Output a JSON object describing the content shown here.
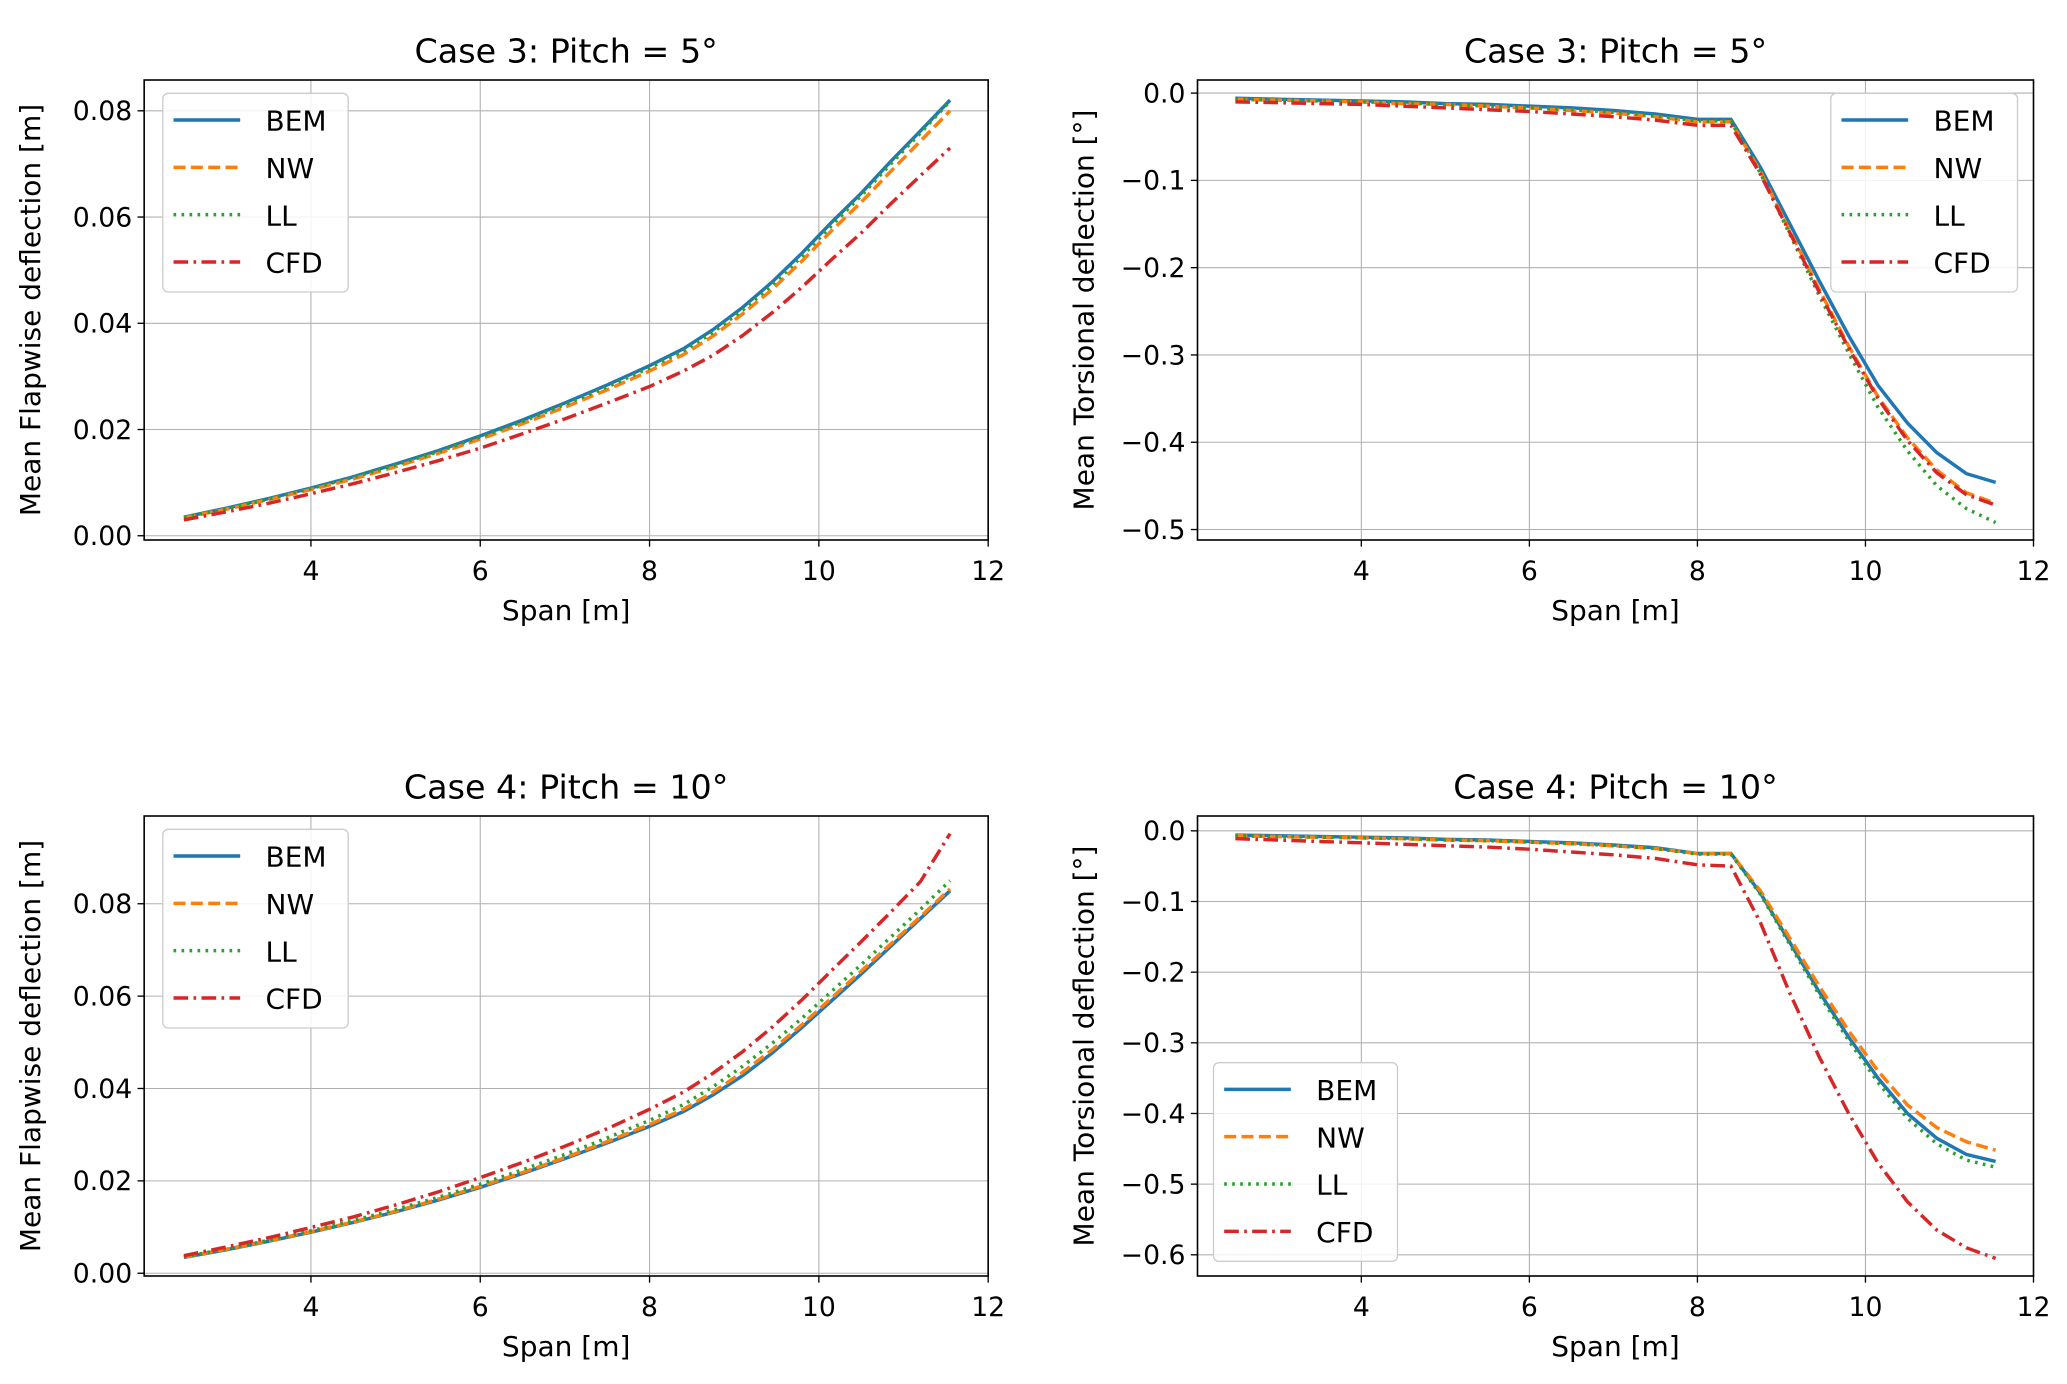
{
  "chart_data": [
    {
      "type": "line",
      "title": "Case 3: Pitch = 5°",
      "xlabel": "Span [m]",
      "ylabel": "Mean Flapwise deflection [m]",
      "xlim": [
        2.03,
        12
      ],
      "ylim": [
        -0.0008,
        0.0858
      ],
      "xticks": [
        {
          "v": 4,
          "label": "4"
        },
        {
          "v": 6,
          "label": "6"
        },
        {
          "v": 8,
          "label": "8"
        },
        {
          "v": 10,
          "label": "10"
        },
        {
          "v": 12,
          "label": "12"
        }
      ],
      "yticks": [
        {
          "v": 0,
          "label": "0.00"
        },
        {
          "v": 0.02,
          "label": "0.02"
        },
        {
          "v": 0.04,
          "label": "0.04"
        },
        {
          "v": 0.06,
          "label": "0.06"
        },
        {
          "v": 0.08,
          "label": "0.08"
        }
      ],
      "grid": true,
      "legend_position": "upper-left",
      "x": [
        2.5,
        3.0,
        3.5,
        4.0,
        4.5,
        5.0,
        5.5,
        6.0,
        6.5,
        7.0,
        7.5,
        8.0,
        8.4,
        8.75,
        9.1,
        9.45,
        9.8,
        10.15,
        10.5,
        10.85,
        11.2,
        11.55
      ],
      "series": [
        {
          "name": "BEM",
          "color": "#1f77b4",
          "style": "solid",
          "values": [
            0.0035,
            0.0052,
            0.007,
            0.009,
            0.0111,
            0.0135,
            0.016,
            0.0188,
            0.0218,
            0.025,
            0.0284,
            0.032,
            0.0352,
            0.0388,
            0.043,
            0.0478,
            0.0532,
            0.059,
            0.0645,
            0.0705,
            0.0762,
            0.082
          ]
        },
        {
          "name": "NW",
          "color": "#ff7f0e",
          "style": "dashed",
          "values": [
            0.0034,
            0.005,
            0.0068,
            0.0087,
            0.0107,
            0.013,
            0.0155,
            0.0182,
            0.0211,
            0.0242,
            0.0275,
            0.031,
            0.0341,
            0.0376,
            0.0418,
            0.0464,
            0.0517,
            0.0574,
            0.0628,
            0.0686,
            0.0743,
            0.08
          ]
        },
        {
          "name": "LL",
          "color": "#2ca02c",
          "style": "dotted",
          "values": [
            0.0035,
            0.0051,
            0.0069,
            0.0089,
            0.011,
            0.0133,
            0.0158,
            0.0186,
            0.0215,
            0.0247,
            0.028,
            0.0316,
            0.0348,
            0.0383,
            0.0425,
            0.0472,
            0.0526,
            0.0584,
            0.064,
            0.07,
            0.0758,
            0.0818
          ]
        },
        {
          "name": "CFD",
          "color": "#d62728",
          "style": "dashdot",
          "values": [
            0.003,
            0.0045,
            0.0061,
            0.0079,
            0.0098,
            0.0119,
            0.0141,
            0.0165,
            0.0192,
            0.022,
            0.025,
            0.0281,
            0.031,
            0.034,
            0.0377,
            0.042,
            0.0468,
            0.052,
            0.057,
            0.0625,
            0.0678,
            0.073
          ]
        }
      ]
    },
    {
      "type": "line",
      "title": "Case 3: Pitch = 5°",
      "xlabel": "Span [m]",
      "ylabel": "Mean Torsional deflection [°]",
      "xlim": [
        2.05,
        12
      ],
      "ylim": [
        -0.512,
        0.015
      ],
      "xticks": [
        {
          "v": 4,
          "label": "4"
        },
        {
          "v": 6,
          "label": "6"
        },
        {
          "v": 8,
          "label": "8"
        },
        {
          "v": 10,
          "label": "10"
        },
        {
          "v": 12,
          "label": "12"
        }
      ],
      "yticks": [
        {
          "v": 0,
          "label": "0.0"
        },
        {
          "v": -0.1,
          "label": "−0.1"
        },
        {
          "v": -0.2,
          "label": "−0.2"
        },
        {
          "v": -0.3,
          "label": "−0.3"
        },
        {
          "v": -0.4,
          "label": "−0.4"
        },
        {
          "v": -0.5,
          "label": "−0.5"
        }
      ],
      "grid": true,
      "legend_position": "upper-right",
      "x": [
        2.5,
        3.0,
        3.5,
        4.0,
        4.5,
        5.0,
        5.5,
        6.0,
        6.5,
        7.0,
        7.5,
        8.0,
        8.4,
        8.75,
        9.1,
        9.45,
        9.8,
        10.15,
        10.5,
        10.85,
        11.2,
        11.55
      ],
      "series": [
        {
          "name": "BEM",
          "color": "#1f77b4",
          "style": "solid",
          "values": [
            -0.006,
            -0.007,
            -0.008,
            -0.009,
            -0.01,
            -0.012,
            -0.013,
            -0.015,
            -0.017,
            -0.02,
            -0.024,
            -0.03,
            -0.03,
            -0.085,
            -0.15,
            -0.215,
            -0.278,
            -0.335,
            -0.378,
            -0.412,
            -0.436,
            -0.446
          ]
        },
        {
          "name": "NW",
          "color": "#ff7f0e",
          "style": "dashed",
          "values": [
            -0.007,
            -0.008,
            -0.009,
            -0.01,
            -0.012,
            -0.013,
            -0.015,
            -0.017,
            -0.02,
            -0.023,
            -0.027,
            -0.033,
            -0.033,
            -0.09,
            -0.158,
            -0.225,
            -0.29,
            -0.348,
            -0.395,
            -0.432,
            -0.458,
            -0.47
          ]
        },
        {
          "name": "LL",
          "color": "#2ca02c",
          "style": "dotted",
          "values": [
            -0.007,
            -0.008,
            -0.009,
            -0.01,
            -0.011,
            -0.013,
            -0.015,
            -0.017,
            -0.019,
            -0.022,
            -0.026,
            -0.032,
            -0.032,
            -0.092,
            -0.162,
            -0.232,
            -0.298,
            -0.36,
            -0.41,
            -0.45,
            -0.476,
            -0.492
          ]
        },
        {
          "name": "CFD",
          "color": "#d62728",
          "style": "dashdot",
          "values": [
            -0.01,
            -0.011,
            -0.012,
            -0.013,
            -0.015,
            -0.017,
            -0.019,
            -0.021,
            -0.024,
            -0.027,
            -0.031,
            -0.037,
            -0.037,
            -0.093,
            -0.16,
            -0.228,
            -0.292,
            -0.35,
            -0.398,
            -0.435,
            -0.46,
            -0.472
          ]
        }
      ]
    },
    {
      "type": "line",
      "title": "Case 4: Pitch = 10°",
      "xlabel": "Span [m]",
      "ylabel": "Mean Flapwise deflection [m]",
      "xlim": [
        2.03,
        12
      ],
      "ylim": [
        -0.0006,
        0.099
      ],
      "xticks": [
        {
          "v": 4,
          "label": "4"
        },
        {
          "v": 6,
          "label": "6"
        },
        {
          "v": 8,
          "label": "8"
        },
        {
          "v": 10,
          "label": "10"
        },
        {
          "v": 12,
          "label": "12"
        }
      ],
      "yticks": [
        {
          "v": 0,
          "label": "0.00"
        },
        {
          "v": 0.02,
          "label": "0.02"
        },
        {
          "v": 0.04,
          "label": "0.04"
        },
        {
          "v": 0.06,
          "label": "0.06"
        },
        {
          "v": 0.08,
          "label": "0.08"
        }
      ],
      "grid": true,
      "legend_position": "upper-left",
      "x": [
        2.5,
        3.0,
        3.5,
        4.0,
        4.5,
        5.0,
        5.5,
        6.0,
        6.5,
        7.0,
        7.5,
        8.0,
        8.4,
        8.75,
        9.1,
        9.45,
        9.8,
        10.15,
        10.5,
        10.85,
        11.2,
        11.55
      ],
      "series": [
        {
          "name": "BEM",
          "color": "#1f77b4",
          "style": "solid",
          "values": [
            0.0034,
            0.0051,
            0.0069,
            0.0089,
            0.011,
            0.0133,
            0.0158,
            0.0186,
            0.0216,
            0.0248,
            0.0282,
            0.0318,
            0.035,
            0.0386,
            0.0428,
            0.0477,
            0.0532,
            0.059,
            0.0648,
            0.0708,
            0.0768,
            0.0828
          ]
        },
        {
          "name": "NW",
          "color": "#ff7f0e",
          "style": "dashed",
          "values": [
            0.0035,
            0.0052,
            0.007,
            0.009,
            0.0111,
            0.0134,
            0.016,
            0.0188,
            0.0218,
            0.025,
            0.0285,
            0.0322,
            0.0355,
            0.0392,
            0.0435,
            0.0484,
            0.0538,
            0.0596,
            0.0654,
            0.0713,
            0.0772,
            0.0832
          ]
        },
        {
          "name": "LL",
          "color": "#2ca02c",
          "style": "dotted",
          "values": [
            0.0035,
            0.0053,
            0.0071,
            0.0092,
            0.0114,
            0.0138,
            0.0164,
            0.0193,
            0.0224,
            0.0257,
            0.0293,
            0.0331,
            0.0365,
            0.0404,
            0.0448,
            0.0498,
            0.0552,
            0.061,
            0.0668,
            0.0728,
            0.0788,
            0.085
          ]
        },
        {
          "name": "CFD",
          "color": "#d62728",
          "style": "dashdot",
          "values": [
            0.0038,
            0.0057,
            0.0077,
            0.0099,
            0.0122,
            0.0148,
            0.0176,
            0.0207,
            0.024,
            0.0275,
            0.0313,
            0.0355,
            0.0392,
            0.0433,
            0.048,
            0.0533,
            0.0592,
            0.0655,
            0.0718,
            0.0782,
            0.0848,
            0.0952
          ]
        }
      ]
    },
    {
      "type": "line",
      "title": "Case 4: Pitch = 10°",
      "xlabel": "Span [m]",
      "ylabel": "Mean Torsional deflection [°]",
      "xlim": [
        2.05,
        12
      ],
      "ylim": [
        -0.63,
        0.021
      ],
      "xticks": [
        {
          "v": 4,
          "label": "4"
        },
        {
          "v": 6,
          "label": "6"
        },
        {
          "v": 8,
          "label": "8"
        },
        {
          "v": 10,
          "label": "10"
        },
        {
          "v": 12,
          "label": "12"
        }
      ],
      "yticks": [
        {
          "v": 0,
          "label": "0.0"
        },
        {
          "v": -0.1,
          "label": "−0.1"
        },
        {
          "v": -0.2,
          "label": "−0.2"
        },
        {
          "v": -0.3,
          "label": "−0.3"
        },
        {
          "v": -0.4,
          "label": "−0.4"
        },
        {
          "v": -0.5,
          "label": "−0.5"
        },
        {
          "v": -0.6,
          "label": "−0.6"
        }
      ],
      "grid": true,
      "legend_position": "lower-left",
      "x": [
        2.5,
        3.0,
        3.5,
        4.0,
        4.5,
        5.0,
        5.5,
        6.0,
        6.5,
        7.0,
        7.5,
        8.0,
        8.4,
        8.75,
        9.1,
        9.45,
        9.8,
        10.15,
        10.5,
        10.85,
        11.2,
        11.55
      ],
      "series": [
        {
          "name": "BEM",
          "color": "#1f77b4",
          "style": "solid",
          "values": [
            -0.006,
            -0.007,
            -0.008,
            -0.009,
            -0.01,
            -0.012,
            -0.013,
            -0.015,
            -0.017,
            -0.02,
            -0.024,
            -0.032,
            -0.032,
            -0.088,
            -0.158,
            -0.228,
            -0.292,
            -0.35,
            -0.4,
            -0.435,
            -0.458,
            -0.468
          ]
        },
        {
          "name": "NW",
          "color": "#ff7f0e",
          "style": "dashed",
          "values": [
            -0.007,
            -0.008,
            -0.009,
            -0.01,
            -0.011,
            -0.013,
            -0.014,
            -0.016,
            -0.018,
            -0.021,
            -0.025,
            -0.032,
            -0.032,
            -0.085,
            -0.152,
            -0.22,
            -0.283,
            -0.34,
            -0.388,
            -0.42,
            -0.44,
            -0.452
          ]
        },
        {
          "name": "LL",
          "color": "#2ca02c",
          "style": "dotted",
          "values": [
            -0.007,
            -0.008,
            -0.009,
            -0.01,
            -0.011,
            -0.013,
            -0.014,
            -0.016,
            -0.018,
            -0.021,
            -0.025,
            -0.033,
            -0.033,
            -0.09,
            -0.161,
            -0.232,
            -0.297,
            -0.356,
            -0.407,
            -0.443,
            -0.466,
            -0.476
          ]
        },
        {
          "name": "CFD",
          "color": "#d62728",
          "style": "dashdot",
          "values": [
            -0.011,
            -0.013,
            -0.015,
            -0.017,
            -0.019,
            -0.021,
            -0.023,
            -0.026,
            -0.03,
            -0.034,
            -0.039,
            -0.048,
            -0.05,
            -0.13,
            -0.23,
            -0.32,
            -0.4,
            -0.47,
            -0.525,
            -0.565,
            -0.59,
            -0.605
          ]
        }
      ]
    }
  ]
}
